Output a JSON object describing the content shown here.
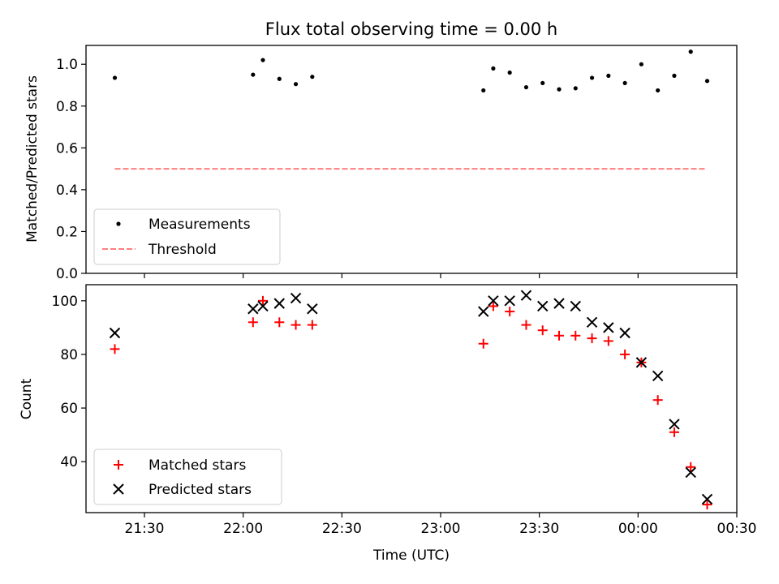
{
  "chart_data": [
    {
      "type": "scatter",
      "title": "Flux total observing time = 0.00 h",
      "xlabel": "",
      "ylabel": "Matched/Predicted stars",
      "ylim": [
        0.0,
        1.09
      ],
      "yticks": [
        "0.0",
        "0.2",
        "0.4",
        "0.6",
        "0.8",
        "1.0"
      ],
      "legend": "lower-left",
      "series": [
        {
          "name": "Measurements",
          "marker": "dot",
          "color": "#000000",
          "x": [
            "21:21",
            "22:03",
            "22:06",
            "22:11",
            "22:16",
            "22:21",
            "23:13",
            "23:16",
            "23:21",
            "23:26",
            "23:31",
            "23:36",
            "23:41",
            "23:46",
            "23:51",
            "23:56",
            "00:01",
            "00:06",
            "00:11",
            "00:16",
            "00:21"
          ],
          "y": [
            0.935,
            0.95,
            1.02,
            0.93,
            0.905,
            0.94,
            0.875,
            0.98,
            0.96,
            0.89,
            0.91,
            0.88,
            0.885,
            0.935,
            0.945,
            0.91,
            1.0,
            0.875,
            0.945,
            1.06,
            0.92
          ]
        },
        {
          "name": "Threshold",
          "marker": "dashed-line",
          "color": "#ff7f7f",
          "x": [
            "21:21",
            "00:21"
          ],
          "y": [
            0.5,
            0.5
          ]
        }
      ]
    },
    {
      "type": "scatter",
      "title": "",
      "xlabel": "Time (UTC)",
      "ylabel": "Count",
      "ylim": [
        21,
        106
      ],
      "yticks": [
        "40",
        "60",
        "80",
        "100"
      ],
      "xticks": [
        "21:30",
        "22:00",
        "22:30",
        "23:00",
        "23:30",
        "00:00",
        "00:30"
      ],
      "legend": "lower-left",
      "series": [
        {
          "name": "Matched stars",
          "marker": "plus",
          "color": "#ff0000",
          "x": [
            "21:21",
            "22:03",
            "22:06",
            "22:11",
            "22:16",
            "22:21",
            "23:13",
            "23:16",
            "23:21",
            "23:26",
            "23:31",
            "23:36",
            "23:41",
            "23:46",
            "23:51",
            "23:56",
            "00:01",
            "00:06",
            "00:11",
            "00:16",
            "00:21"
          ],
          "y": [
            82,
            92,
            100,
            92,
            91,
            91,
            84,
            98,
            96,
            91,
            89,
            87,
            87,
            86,
            85,
            80,
            77,
            63,
            51,
            38,
            24
          ]
        },
        {
          "name": "Predicted stars",
          "marker": "x",
          "color": "#000000",
          "x": [
            "21:21",
            "22:03",
            "22:06",
            "22:11",
            "22:16",
            "22:21",
            "23:13",
            "23:16",
            "23:21",
            "23:26",
            "23:31",
            "23:36",
            "23:41",
            "23:46",
            "23:51",
            "23:56",
            "00:01",
            "00:06",
            "00:11",
            "00:16",
            "00:21"
          ],
          "y": [
            88,
            97,
            98,
            99,
            101,
            97,
            96,
            100,
            100,
            102,
            98,
            99,
            98,
            92,
            90,
            88,
            77,
            72,
            54,
            36,
            26
          ]
        }
      ]
    }
  ]
}
